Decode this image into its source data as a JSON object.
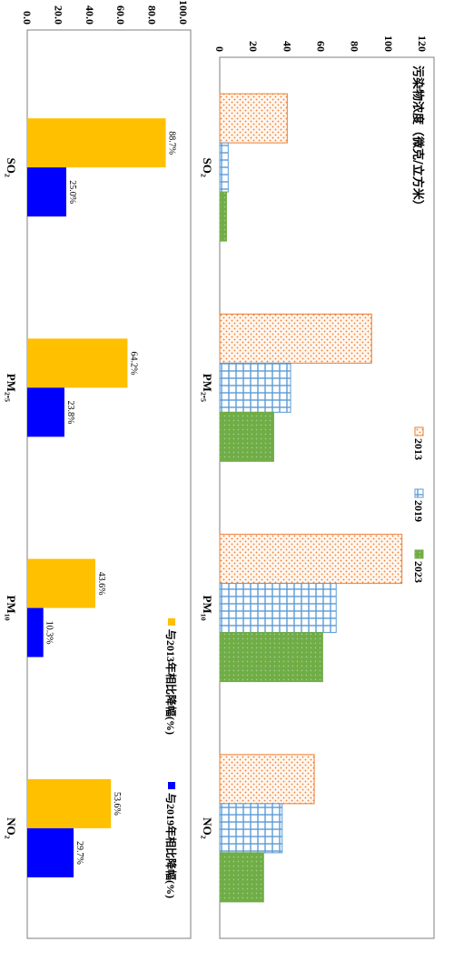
{
  "chart_data": [
    {
      "type": "bar",
      "orientation": "rotated-90",
      "title": "污染物浓度（微克/立方米）",
      "categories": [
        "SO₂",
        "PM₂.₅",
        "PM₁₀",
        "NO₂"
      ],
      "series": [
        {
          "name": "2013",
          "values": [
            40,
            90,
            108,
            56
          ],
          "color": "#ed7d31",
          "pattern": "dots"
        },
        {
          "name": "2019",
          "values": [
            5,
            42,
            69,
            37
          ],
          "color": "#5b9bd5",
          "pattern": "grid"
        },
        {
          "name": "2023",
          "values": [
            4,
            32,
            61,
            26
          ],
          "color": "#70ad47",
          "pattern": "solid-dots"
        }
      ],
      "ylim": [
        0,
        120
      ],
      "ticks": [
        "0",
        "20",
        "40",
        "60",
        "80",
        "100",
        "120"
      ],
      "legend_position": "bottom-center"
    },
    {
      "type": "bar",
      "orientation": "rotated-90",
      "categories": [
        "SO₂",
        "PM₂.₅",
        "PM₁₀",
        "NO₂"
      ],
      "series": [
        {
          "name": "与2013年相比降幅(%)",
          "values": [
            88.7,
            64.2,
            43.6,
            53.6
          ],
          "labels": [
            "88.7%",
            "64.2%",
            "43.6%",
            "53.6%"
          ],
          "color": "#ffc000"
        },
        {
          "name": "与2019年相比降幅(%)",
          "values": [
            25.0,
            23.8,
            10.3,
            29.7
          ],
          "labels": [
            "25.0%",
            "23.8%",
            "10.3%",
            "29.7%"
          ],
          "color": "#0000ff"
        }
      ],
      "ylim": [
        0,
        100
      ],
      "ticks": [
        "0.0",
        "20.0",
        "40.0",
        "60.0",
        "80.0",
        "100.0"
      ],
      "legend_position": "bottom-center"
    }
  ]
}
